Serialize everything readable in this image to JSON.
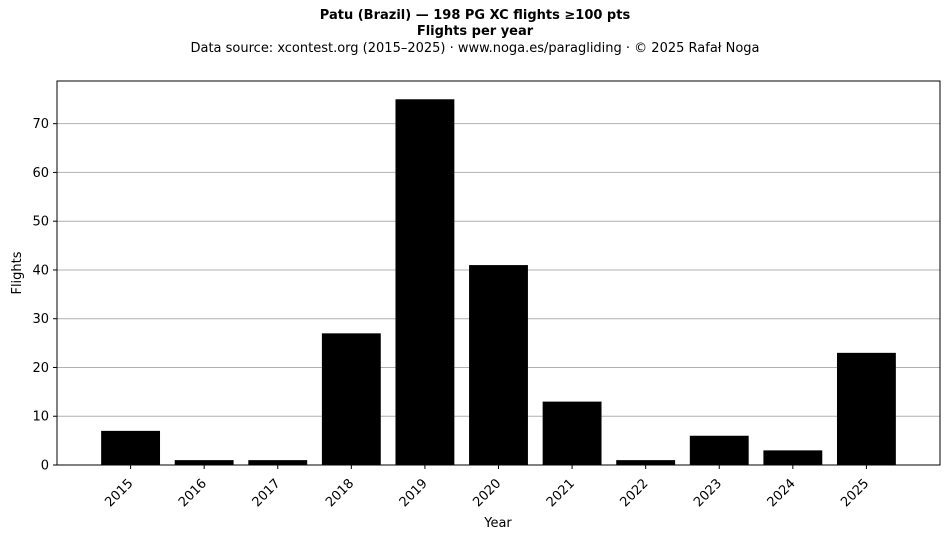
{
  "title_line1": "Patu (Brazil)  —  198 PG XC flights ≥100 pts",
  "title_line2": "Flights per year",
  "subtitle": "Data source: xcontest.org (2015–2025)  ·  www.noga.es/paragliding  ·  © 2025 Rafał Noga",
  "chart_data": {
    "type": "bar",
    "title": "Patu (Brazil)  —  198 PG XC flights ≥100 pts",
    "subtitle": "Flights per year",
    "xlabel": "Year",
    "ylabel": "Flights",
    "categories": [
      "2015",
      "2016",
      "2017",
      "2018",
      "2019",
      "2020",
      "2021",
      "2022",
      "2023",
      "2024",
      "2025"
    ],
    "values": [
      7,
      1,
      1,
      27,
      75,
      41,
      13,
      1,
      6,
      3,
      23
    ],
    "ylim": [
      0,
      78.75
    ],
    "yticks": [
      0,
      10,
      20,
      30,
      40,
      50,
      60,
      70
    ],
    "grid": "y",
    "bar_color": "#000000"
  }
}
